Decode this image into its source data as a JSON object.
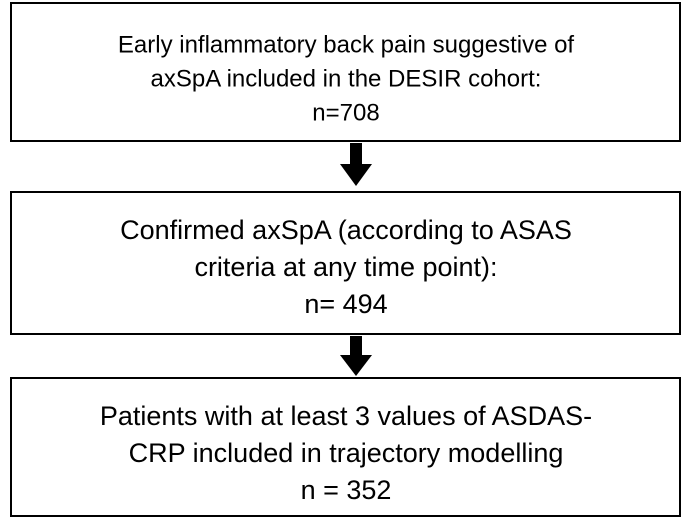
{
  "nodes": [
    {
      "lines": [
        "Early inflammatory back pain suggestive of",
        "axSpA included in the DESIR cohort:",
        "n=708"
      ]
    },
    {
      "lines": [
        "Confirmed axSpA (according to ASAS",
        "criteria at any time point):",
        "n= 494"
      ]
    },
    {
      "lines": [
        "Patients with at least 3 values of ASDAS-",
        "CRP included in trajectory modelling",
        "n = 352"
      ]
    }
  ]
}
